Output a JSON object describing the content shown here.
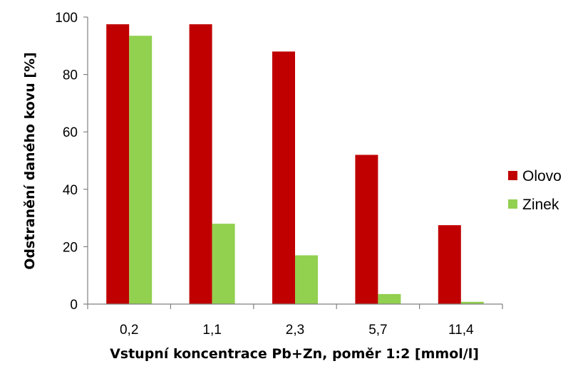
{
  "chart_data": {
    "type": "bar",
    "categories": [
      "0,2",
      "1,1",
      "2,3",
      "5,7",
      "11,4"
    ],
    "series": [
      {
        "name": "Olovo",
        "values": [
          97.5,
          97.5,
          88,
          52,
          27.5
        ]
      },
      {
        "name": "Zinek",
        "values": [
          93.5,
          28,
          17,
          3.5,
          0.8
        ]
      }
    ],
    "xlabel": "Vstupní koncentrace Pb+Zn, poměr 1:2 [mmol/l]",
    "ylabel": "Odstranění daného kovu [%]",
    "ylim": [
      0,
      100
    ],
    "yticks": [
      0,
      20,
      40,
      60,
      80,
      100
    ],
    "grid": false,
    "legend_position": "right"
  },
  "colors": {
    "Olovo": "#c00000",
    "Zinek": "#92d050",
    "axis": "#808080"
  }
}
